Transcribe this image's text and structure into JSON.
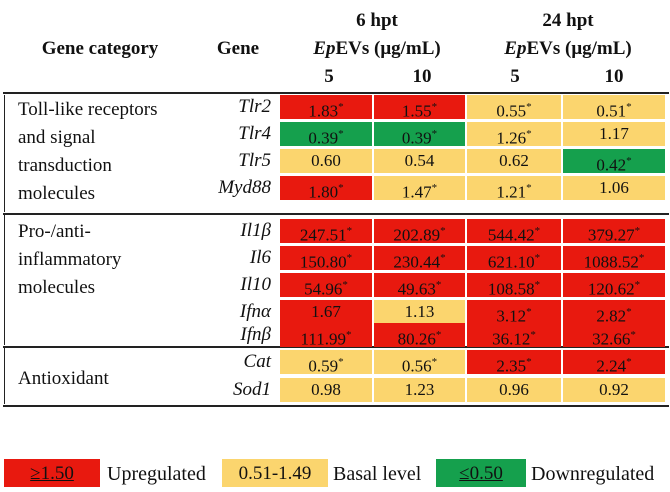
{
  "header": {
    "col_category": "Gene category",
    "col_gene": "Gene",
    "time_6": "6 hpt",
    "time_24": "24 hpt",
    "evs_prefix": "Ep",
    "evs_suffix": "EVs (μg/mL)",
    "dose_5": "5",
    "dose_10": "10"
  },
  "categories": {
    "tlr": [
      "Toll-like receptors",
      "and signal",
      "transduction",
      "molecules"
    ],
    "inflam": [
      "Pro-/anti-",
      "inflammatory",
      "molecules"
    ],
    "antiox": [
      "Antioxidant"
    ]
  },
  "rows": [
    {
      "gene": "Tlr2",
      "values": [
        "1.83",
        "1.55",
        "0.55",
        "0.51"
      ],
      "sig": [
        true,
        true,
        true,
        true
      ],
      "color": [
        "red",
        "red",
        "yel",
        "yel"
      ]
    },
    {
      "gene": "Tlr4",
      "values": [
        "0.39",
        "0.39",
        "1.26",
        "1.17"
      ],
      "sig": [
        true,
        true,
        true,
        false
      ],
      "color": [
        "grn",
        "grn",
        "yel",
        "yel"
      ]
    },
    {
      "gene": "Tlr5",
      "values": [
        "0.60",
        "0.54",
        "0.62",
        "0.42"
      ],
      "sig": [
        false,
        false,
        false,
        true
      ],
      "color": [
        "yel",
        "yel",
        "yel",
        "grn"
      ]
    },
    {
      "gene": "Myd88",
      "values": [
        "1.80",
        "1.47",
        "1.21",
        "1.06"
      ],
      "sig": [
        true,
        true,
        true,
        false
      ],
      "color": [
        "red",
        "yel",
        "yel",
        "yel"
      ]
    },
    {
      "gene": "Il1β",
      "values": [
        "247.51",
        "202.89",
        "544.42",
        "379.27"
      ],
      "sig": [
        true,
        true,
        true,
        true
      ],
      "color": [
        "red",
        "red",
        "red",
        "red"
      ]
    },
    {
      "gene": "Il6",
      "values": [
        "150.80",
        "230.44",
        "621.10",
        "1088.52"
      ],
      "sig": [
        true,
        true,
        true,
        true
      ],
      "color": [
        "red",
        "red",
        "red",
        "red"
      ]
    },
    {
      "gene": "Il10",
      "values": [
        "54.96",
        "49.63",
        "108.58",
        "120.62"
      ],
      "sig": [
        true,
        true,
        true,
        true
      ],
      "color": [
        "red",
        "red",
        "red",
        "red"
      ]
    },
    {
      "gene": "Ifnα",
      "values": [
        "1.67",
        "1.13",
        "3.12",
        "2.82"
      ],
      "sig": [
        false,
        false,
        true,
        true
      ],
      "color": [
        "red",
        "yel",
        "red",
        "red"
      ]
    },
    {
      "gene": "Ifnβ",
      "values": [
        "111.99",
        "80.26",
        "36.12",
        "32.66"
      ],
      "sig": [
        true,
        true,
        true,
        true
      ],
      "color": [
        "red",
        "red",
        "red",
        "red"
      ]
    },
    {
      "gene": "Cat",
      "values": [
        "0.59",
        "0.56",
        "2.35",
        "2.24"
      ],
      "sig": [
        true,
        true,
        true,
        true
      ],
      "color": [
        "yel",
        "yel",
        "red",
        "red"
      ]
    },
    {
      "gene": "Sod1",
      "values": [
        "0.98",
        "1.23",
        "0.96",
        "0.92"
      ],
      "sig": [
        false,
        false,
        false,
        false
      ],
      "color": [
        "yel",
        "yel",
        "yel",
        "yel"
      ]
    }
  ],
  "significance_mark": "*",
  "legend": {
    "up_range": "≥1.50",
    "up_label": "Upregulated",
    "basal_range": "0.51-1.49",
    "basal_label": "Basal level",
    "down_range": "≤0.50",
    "down_label": "Downregulated"
  },
  "colors": {
    "red": "#e8190f",
    "yellow": "#fbd56e",
    "green": "#15a04d"
  }
}
